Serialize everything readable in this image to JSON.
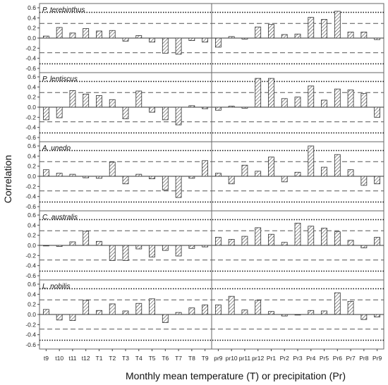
{
  "chart_data": {
    "type": "bar",
    "ylabel": "Correlation",
    "xlabel": "Monthly mean temperature (T) or precipitation (Pr)",
    "categories": [
      "t9",
      "t10",
      "t11",
      "t12",
      "T1",
      "T2",
      "T3",
      "T4",
      "T5",
      "T6",
      "T7",
      "T8",
      "T9",
      "pr9",
      "pr10",
      "pr11",
      "pr12",
      "Pr1",
      "Pr2",
      "Pr3",
      "Pr4",
      "Pr5",
      "Pr6",
      "Pr7",
      "Pr8",
      "Pr9"
    ],
    "ylim": [
      -0.6,
      0.6
    ],
    "yticks": [
      "0.6",
      "0.4",
      "0.2",
      "0.0",
      "-0.2",
      "-0.4",
      "-0.6"
    ],
    "reference_lines": {
      "dashed": [
        0.29,
        -0.29
      ],
      "dotted": [
        0.51,
        -0.51
      ]
    },
    "panels": [
      {
        "name": "P. terebinthus",
        "values": [
          0.04,
          0.21,
          0.1,
          0.19,
          0.14,
          0.15,
          -0.06,
          0.05,
          -0.08,
          -0.3,
          -0.32,
          -0.05,
          -0.08,
          -0.18,
          0.03,
          -0.02,
          0.22,
          0.27,
          0.07,
          0.08,
          0.41,
          0.37,
          0.53,
          0.12,
          0.12,
          -0.03
        ]
      },
      {
        "name": "P. lentiscus",
        "values": [
          -0.25,
          -0.21,
          0.33,
          0.26,
          0.23,
          0.15,
          -0.23,
          0.32,
          -0.1,
          -0.25,
          -0.35,
          0.03,
          -0.03,
          -0.06,
          0.02,
          -0.02,
          0.57,
          0.57,
          0.17,
          0.2,
          0.42,
          0.14,
          0.36,
          0.34,
          0.27,
          -0.2
        ]
      },
      {
        "name": "A. unedo",
        "values": [
          0.13,
          0.06,
          0.04,
          -0.03,
          -0.04,
          0.28,
          -0.15,
          0.04,
          -0.05,
          -0.27,
          -0.42,
          -0.04,
          0.31,
          0.06,
          -0.15,
          0.22,
          0.1,
          0.38,
          -0.11,
          0.08,
          0.6,
          0.18,
          0.43,
          0.13,
          -0.18,
          -0.15
        ]
      },
      {
        "name": "C. australis",
        "values": [
          0.0,
          -0.02,
          0.07,
          0.28,
          0.08,
          -0.3,
          -0.3,
          -0.07,
          -0.23,
          -0.1,
          -0.21,
          -0.06,
          -0.03,
          0.16,
          0.12,
          0.18,
          0.35,
          0.22,
          0.06,
          0.44,
          0.38,
          0.34,
          0.27,
          0.1,
          -0.05,
          0.16
        ]
      },
      {
        "name": "L. nobilis",
        "values": [
          0.1,
          -0.11,
          -0.12,
          0.28,
          0.08,
          0.21,
          0.07,
          0.22,
          0.31,
          -0.16,
          0.04,
          0.13,
          0.19,
          0.19,
          0.36,
          0.09,
          0.28,
          0.06,
          -0.03,
          -0.01,
          0.08,
          0.07,
          0.43,
          0.26,
          -0.1,
          -0.05
        ]
      }
    ]
  }
}
